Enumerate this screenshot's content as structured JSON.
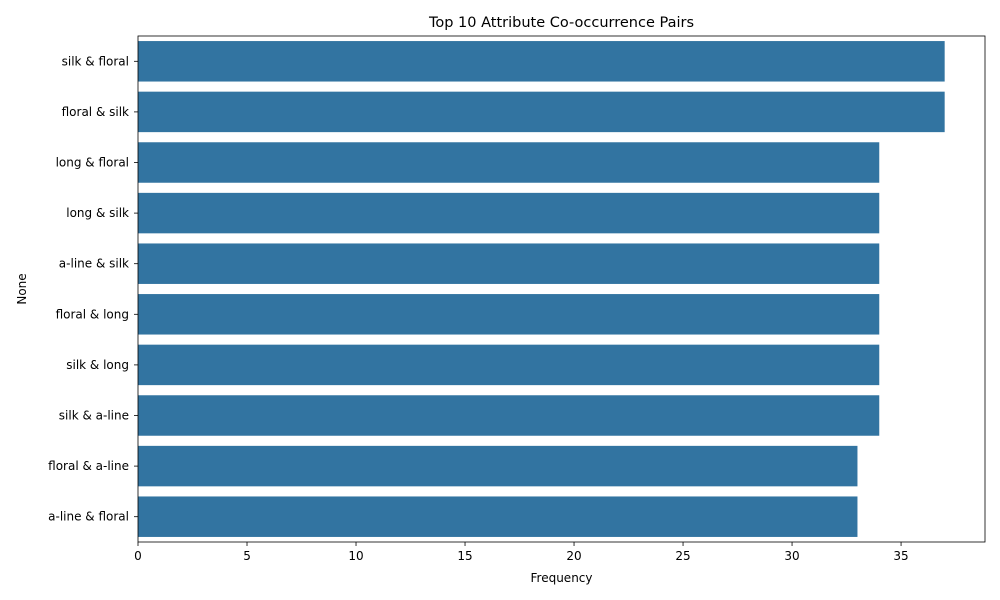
{
  "chart_data": {
    "type": "bar",
    "orientation": "horizontal",
    "title": "Top 10 Attribute Co-occurrence Pairs",
    "xlabel": "Frequency",
    "ylabel": "None",
    "categories": [
      "silk & floral",
      "floral & silk",
      "long & floral",
      "long & silk",
      "a-line & silk",
      "floral & long",
      "silk & long",
      "silk & a-line",
      "floral & a-line",
      "a-line & floral"
    ],
    "values": [
      37,
      37,
      34,
      34,
      34,
      34,
      34,
      34,
      33,
      33
    ],
    "xlim": [
      0,
      38.85
    ],
    "xticks": [
      0,
      5,
      10,
      15,
      20,
      25,
      30,
      35
    ],
    "bar_color": "#3274a1",
    "grid": false,
    "legend": "none"
  }
}
